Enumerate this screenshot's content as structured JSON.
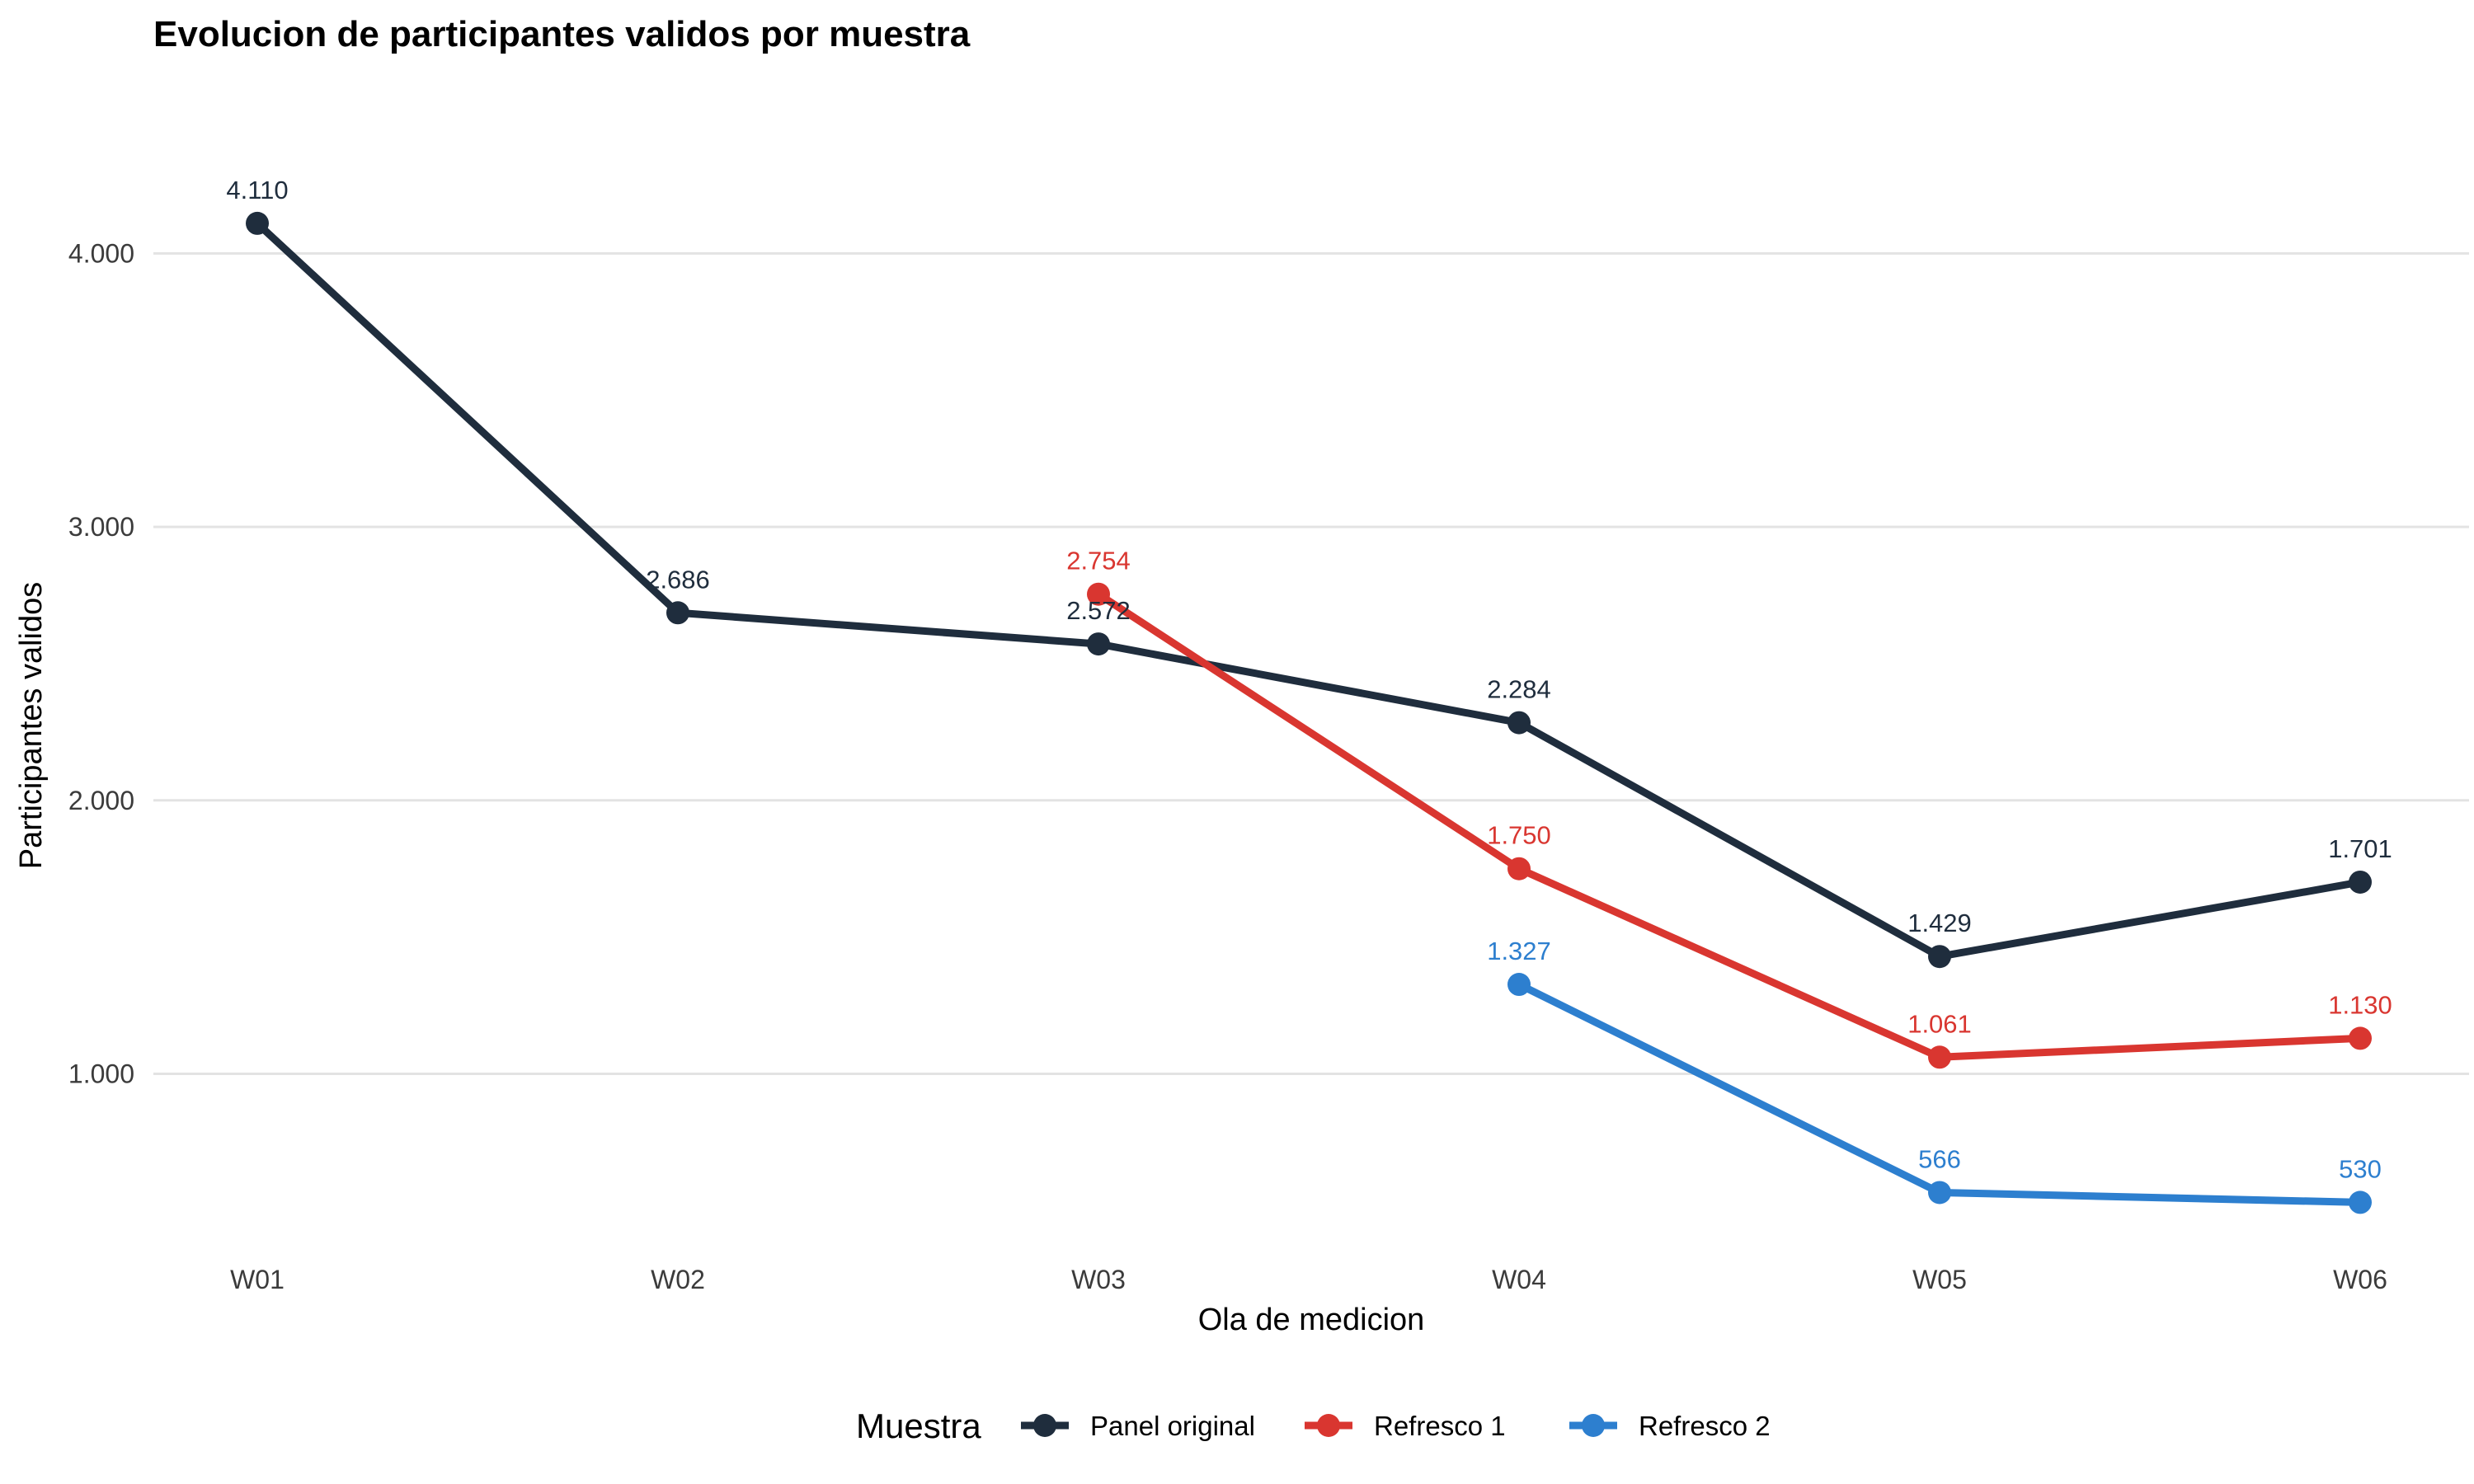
{
  "chart_data": {
    "type": "line",
    "title": "Evolucion de participantes validos por muestra",
    "xlabel": "Ola de medicion",
    "ylabel": "Participantes validos",
    "categories": [
      "W01",
      "W02",
      "W03",
      "W04",
      "W05",
      "W06"
    ],
    "yticks": [
      1000,
      2000,
      3000,
      4000
    ],
    "ytick_labels": [
      "1.000",
      "2.000",
      "3.000",
      "4.000"
    ],
    "ylim": [
      420,
      4450
    ],
    "grid": true,
    "legend": {
      "title": "Muestra",
      "position": "bottom"
    },
    "series": [
      {
        "name": "Panel original",
        "color": "#1f2d3d",
        "values": [
          4110,
          2686,
          2572,
          2284,
          1429,
          1701
        ],
        "labels": [
          "4.110",
          "2.686",
          "2.572",
          "2.284",
          "1.429",
          "1.701"
        ]
      },
      {
        "name": "Refresco 1",
        "color": "#d93630",
        "values": [
          null,
          null,
          2754,
          1750,
          1061,
          1130
        ],
        "labels": [
          null,
          null,
          "2.754",
          "1.750",
          "1.061",
          "1.130"
        ]
      },
      {
        "name": "Refresco 2",
        "color": "#2d7fcf",
        "values": [
          null,
          null,
          null,
          1327,
          566,
          530
        ],
        "labels": [
          null,
          null,
          null,
          "1.327",
          "566",
          "530"
        ]
      }
    ]
  }
}
